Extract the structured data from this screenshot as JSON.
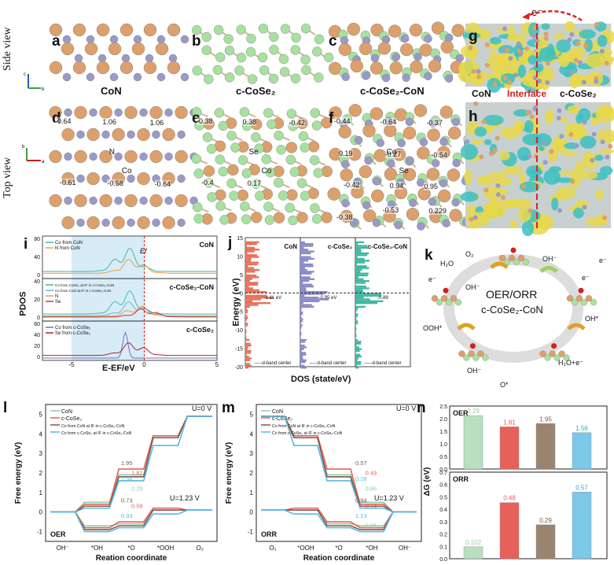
{
  "views": {
    "side": "Side view",
    "top": "Top view"
  },
  "panels": {
    "a": "a",
    "b": "b",
    "c": "c",
    "d": "d",
    "e": "e",
    "f": "f",
    "g": "g",
    "h": "h",
    "i": "i",
    "j": "j",
    "k": "k",
    "l": "l",
    "m": "m",
    "n": "n"
  },
  "captions": {
    "con": "CoN",
    "cose2": "c-CoSe₂",
    "hetero": "c-CoSe₂-CoN",
    "interface": "Interface"
  },
  "g_labels": {
    "left": "CoN",
    "mid": "Interface",
    "right": "c-CoSe₂",
    "electron": "e⁻"
  },
  "d_charges": [
    "-0.64",
    "1.06",
    "1.06",
    "-0.61",
    "-0.58",
    "-0.64"
  ],
  "d_atoms": [
    "N",
    "Co"
  ],
  "e_charges": [
    "-0.38",
    "0.38",
    "-0.42",
    "-0.4",
    "0.17"
  ],
  "e_atoms": [
    "Se",
    "Co"
  ],
  "f_charges": [
    "-0.44",
    "-0.64",
    "-0.37",
    "0.19",
    "-0.27",
    "-0.54",
    "-0.42",
    "0.94",
    "0.95",
    "-0.38",
    "-0.53",
    "0.229"
  ],
  "f_atoms": [
    "Co",
    "Se"
  ],
  "pdos": {
    "ylabel": "PDOS",
    "xlabel": "E-EF/eV",
    "top": {
      "title": "CoN",
      "legend": [
        "Co from CoN",
        "N from CoN"
      ],
      "ef": "Ef"
    },
    "mid": {
      "title": "c-CoSe₂-CoN",
      "legend": [
        "Co from CoSe₂ at IF in c-CoSe₂-CoN",
        "Co from CoN at IF in c-CoSe₂-CoN",
        "N",
        "Se"
      ]
    },
    "bot": {
      "title": "c-CoSe₂",
      "legend": [
        "Co from c-CoSe₂",
        "Se from c-CoSe₂"
      ]
    },
    "xticks": [
      "-5",
      "0",
      "5"
    ],
    "yticks_top": [
      "80",
      "40",
      "0"
    ],
    "yticks_mid": [
      "40",
      "20",
      "0"
    ],
    "yticks_bot": [
      "60",
      "40",
      "20",
      "0"
    ]
  },
  "dos": {
    "ylabel": "Energy (eV)",
    "xlabel": "DOS (state/eV)",
    "cols": [
      {
        "title": "CoN",
        "center": "-1.11 eV",
        "note": "d-band center"
      },
      {
        "title": "c-CoSe₂",
        "center": "-0.95 eV",
        "note": "d-band center"
      },
      {
        "title": "c-CoSe₂-CoN",
        "center": "-0.89",
        "note": "d-band center"
      }
    ],
    "yticks": [
      "15",
      "10",
      "5",
      "0",
      "-5",
      "-10",
      "-15",
      "-20"
    ]
  },
  "cycle": {
    "center": "OER/ORR",
    "catalyst": "c-CoSe₂-CoN",
    "species": [
      "H₂O",
      "O₂",
      "OH⁻",
      "e⁻",
      "e⁻",
      "OH⁻",
      "OOH*",
      "OH*",
      "OH⁻",
      "H₂O+e⁻",
      "O*",
      "e⁻"
    ]
  },
  "chart_data": [
    {
      "type": "line",
      "panel": "l",
      "title": "",
      "xlabel": "Reation coordinate",
      "ylabel": "Free energy (eV)",
      "categories": [
        "OH⁻",
        "*OH",
        "*O",
        "*OOH",
        "O₂"
      ],
      "ylim": [
        -1.5,
        5.5
      ],
      "series": [
        {
          "name": "CoN"
        },
        {
          "name": "c-CoSe₂"
        },
        {
          "name": "Co from CoN at IF in c-CoSe₂-CoN"
        },
        {
          "name": "Co from c-CoSe₂ at IF in c-CoSe₂-CoN"
        }
      ],
      "annotations": [
        "OER",
        "U=0 V",
        "U=1.23 V",
        "1.95",
        "1.81",
        "1.56",
        "2.29",
        "0.73",
        "0.59",
        "0.33",
        "1.07"
      ]
    },
    {
      "type": "line",
      "panel": "m",
      "title": "",
      "xlabel": "Reation coordinate",
      "ylabel": "Free energy (eV)",
      "categories": [
        "O₂",
        "*OOH",
        "*O",
        "*OH",
        "OH⁻"
      ],
      "ylim": [
        -1.5,
        5.5
      ],
      "series": [
        {
          "name": "CoN"
        },
        {
          "name": "c-CoSe₂"
        },
        {
          "name": "Co from CoN at IF in c-CoSe₂-CoN"
        },
        {
          "name": "Co from c-CoSe₂ at IF in c-CoSe₂-CoN"
        }
      ],
      "annotations": [
        "ORR",
        "U=0 V",
        "U=1.23 V",
        "0.57",
        "0.49",
        "0.28",
        "0.66",
        "0.94",
        "0.74",
        "1.13",
        "1.01"
      ]
    },
    {
      "type": "bar",
      "panel": "n",
      "title": "",
      "ylabel": "ΔG (eV)",
      "categories": [
        "CoN",
        "c-CoSe₂",
        "Co from CoN at IF",
        "Co from c-CoSe₂ at IF"
      ],
      "groups": [
        {
          "name": "OER",
          "values": [
            2.29,
            1.81,
            1.95,
            1.56
          ],
          "ylim": [
            0,
            2.5
          ],
          "yticks": [
            "0.0",
            "0.5",
            "1.0",
            "1.5",
            "2.0",
            "2.5"
          ]
        },
        {
          "name": "ORR",
          "values": [
            0.102,
            0.48,
            0.29,
            0.57
          ],
          "ylim": [
            0,
            0.7
          ],
          "yticks": [
            "0.0",
            "0.1",
            "0.2",
            "0.3",
            "0.4",
            "0.5",
            "0.6",
            "0.7"
          ]
        }
      ],
      "value_labels": [
        [
          "2.29",
          "1.81",
          "1.95",
          "1.56"
        ],
        [
          "0.102",
          "0.48",
          "0.29",
          "0.57"
        ]
      ],
      "colors": [
        "#b8e0c0",
        "#e8605a",
        "#9a8470",
        "#7cc8e8"
      ]
    }
  ],
  "colors": {
    "co": "#dba06c",
    "n": "#9a9ac8",
    "se": "#a8e0a0",
    "teal": "#3cb8a8",
    "red": "#c83a3a",
    "brown": "#7a5a4a",
    "cyan": "#5ab8e0",
    "iso_y": "#e8d84a",
    "iso_c": "#3cc0c0"
  }
}
